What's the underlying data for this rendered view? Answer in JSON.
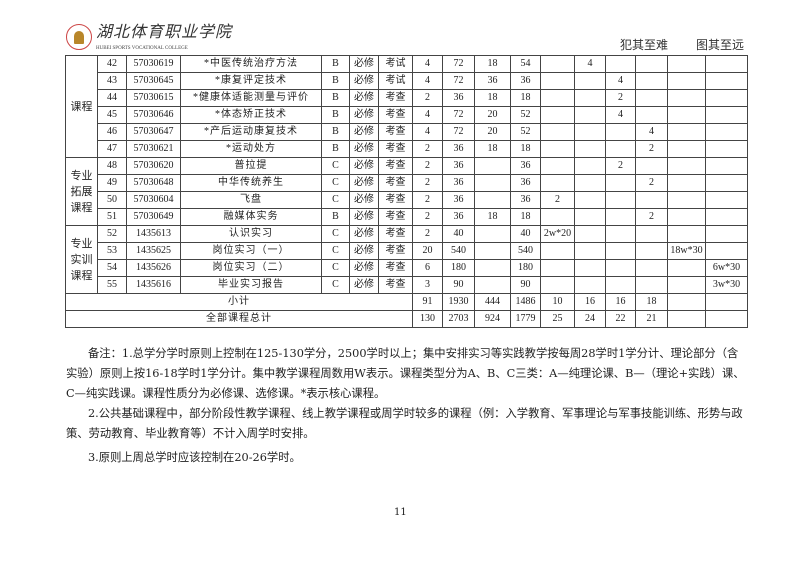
{
  "header": {
    "college_name": "湖北体育职业学院",
    "college_name_en": "HUBEI SPORTS VOCATIONAL COLLEGE",
    "motto_left": "犯其至难",
    "motto_right": "图其至远"
  },
  "table": {
    "groups": [
      {
        "label": "课程",
        "rows": 6
      },
      {
        "label": "专业拓展课程",
        "rows": 4
      },
      {
        "label": "专业实训课程",
        "rows": 4
      }
    ],
    "rows": [
      [
        "42",
        "57030619",
        "*中医传统治疗方法",
        "B",
        "必修",
        "考试",
        "4",
        "72",
        "18",
        "54",
        "",
        "4",
        "",
        "",
        "",
        "",
        ""
      ],
      [
        "43",
        "57030645",
        "*康复评定技术",
        "B",
        "必修",
        "考试",
        "4",
        "72",
        "36",
        "36",
        "",
        "",
        "4",
        "",
        "",
        "",
        ""
      ],
      [
        "44",
        "57030615",
        "*健康体适能测量与评价",
        "B",
        "必修",
        "考查",
        "2",
        "36",
        "18",
        "18",
        "",
        "",
        "2",
        "",
        "",
        "",
        ""
      ],
      [
        "45",
        "57030646",
        "*体态矫正技术",
        "B",
        "必修",
        "考查",
        "4",
        "72",
        "20",
        "52",
        "",
        "",
        "4",
        "",
        "",
        "",
        ""
      ],
      [
        "46",
        "57030647",
        "*产后运动康复技术",
        "B",
        "必修",
        "考查",
        "4",
        "72",
        "20",
        "52",
        "",
        "",
        "",
        "4",
        "",
        "",
        ""
      ],
      [
        "47",
        "57030621",
        "*运动处方",
        "B",
        "必修",
        "考查",
        "2",
        "36",
        "18",
        "18",
        "",
        "",
        "",
        "2",
        "",
        "",
        ""
      ],
      [
        "48",
        "57030620",
        "普拉提",
        "C",
        "必修",
        "考查",
        "2",
        "36",
        "",
        "36",
        "",
        "",
        "2",
        "",
        "",
        "",
        ""
      ],
      [
        "49",
        "57030648",
        "中华传统养生",
        "C",
        "必修",
        "考查",
        "2",
        "36",
        "",
        "36",
        "",
        "",
        "",
        "2",
        "",
        "",
        ""
      ],
      [
        "50",
        "57030604",
        "飞盘",
        "C",
        "必修",
        "考查",
        "2",
        "36",
        "",
        "36",
        "2",
        "",
        "",
        "",
        "",
        "",
        ""
      ],
      [
        "51",
        "57030649",
        "融媒体实务",
        "B",
        "必修",
        "考查",
        "2",
        "36",
        "18",
        "18",
        "",
        "",
        "",
        "2",
        "",
        "",
        ""
      ],
      [
        "52",
        "1435613",
        "认识实习",
        "C",
        "必修",
        "考查",
        "2",
        "40",
        "",
        "40",
        "2w*20",
        "",
        "",
        "",
        "",
        "",
        ""
      ],
      [
        "53",
        "1435625",
        "岗位实习（一）",
        "C",
        "必修",
        "考查",
        "20",
        "540",
        "",
        "540",
        "",
        "",
        "",
        "",
        "18w*30",
        "",
        ""
      ],
      [
        "54",
        "1435626",
        "岗位实习（二）",
        "C",
        "必修",
        "考查",
        "6",
        "180",
        "",
        "180",
        "",
        "",
        "",
        "",
        "",
        "6w*30",
        ""
      ],
      [
        "55",
        "1435616",
        "毕业实习报告",
        "C",
        "必修",
        "考查",
        "3",
        "90",
        "",
        "90",
        "",
        "",
        "",
        "",
        "",
        "3w*30",
        ""
      ]
    ],
    "subtotal": {
      "label": "小计",
      "values": [
        "91",
        "1930",
        "444",
        "1486",
        "10",
        "16",
        "16",
        "18",
        "",
        ""
      ]
    },
    "total": {
      "label": "全部课程总计",
      "values": [
        "130",
        "2703",
        "924",
        "1779",
        "25",
        "24",
        "22",
        "21",
        "",
        ""
      ]
    }
  },
  "notes": [
    "备注：1.总学分学时原则上控制在125-130学分，2500学时以上；集中安排实习等实践教学按每周28学时1学分计、理论部分（含实验）原则上按16-18学时1学分计。集中教学课程周数用W表示。课程类型分为A、B、C三类：A—纯理论课、B—（理论+实践）课、C—纯实践课。课程性质分为必修课、选修课。*表示核心课程。",
    "2.公共基础课程中，部分阶段性教学课程、线上教学课程或周学时较多的课程（例：入学教育、军事理论与军事技能训练、形势与政策、劳动教育、毕业教育等）不计入周学时安排。",
    "3.原则上周总学时应该控制在20-26学时。"
  ],
  "page_number": "11"
}
